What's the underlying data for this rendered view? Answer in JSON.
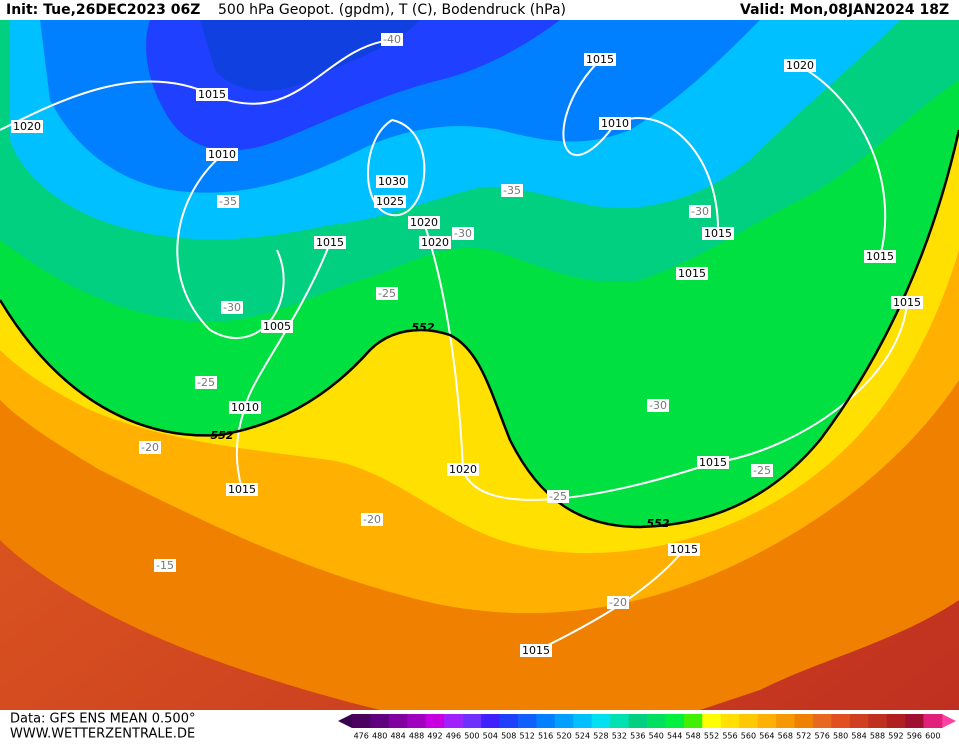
{
  "header": {
    "init": "Init: Tue,26DEC2023 06Z",
    "title": "500 hPa Geopot. (gpdm), T (C), Bodendruck (hPa)",
    "valid": "Valid: Mon,08JAN2024 18Z"
  },
  "pressure_labels": [
    "1015",
    "1020",
    "1010",
    "1030",
    "1025",
    "1020",
    "1020",
    "1015",
    "1005",
    "1010",
    "1015",
    "1020",
    "1015",
    "1020",
    "1010",
    "1015",
    "1015",
    "1015",
    "1015",
    "1015",
    "1015",
    "1015"
  ],
  "temperature_labels": [
    "-40",
    "-35",
    "-35",
    "-30",
    "-30",
    "-30",
    "-25",
    "-25",
    "-25",
    "-25",
    "-30",
    "-20",
    "-20",
    "-20",
    "-15"
  ],
  "height_labels": [
    "552",
    "552",
    "552"
  ],
  "footer": {
    "source": "Data: GFS ENS MEAN 0.500°",
    "website": "WWW.WETTERZENTRALE.DE"
  },
  "colorbar": {
    "ticks": [
      476,
      480,
      484,
      488,
      492,
      496,
      500,
      504,
      508,
      512,
      516,
      520,
      524,
      528,
      532,
      536,
      540,
      544,
      548,
      552,
      556,
      560,
      564,
      568,
      572,
      576,
      580,
      584,
      588,
      592,
      596,
      600
    ],
    "colors": [
      "#4b0060",
      "#600080",
      "#8000a0",
      "#a000c0",
      "#c800e0",
      "#a020ff",
      "#7030ff",
      "#4020ff",
      "#2040ff",
      "#1060ff",
      "#0080ff",
      "#00a0ff",
      "#00c0ff",
      "#00e0f0",
      "#00e0b0",
      "#00d080",
      "#00e060",
      "#00f040",
      "#40f000",
      "#ffff00",
      "#ffe000",
      "#ffc800",
      "#ffb000",
      "#f89800",
      "#f08000",
      "#e86820",
      "#e05020",
      "#d04020",
      "#c03020",
      "#b02020",
      "#a01030",
      "#e0207a"
    ]
  }
}
